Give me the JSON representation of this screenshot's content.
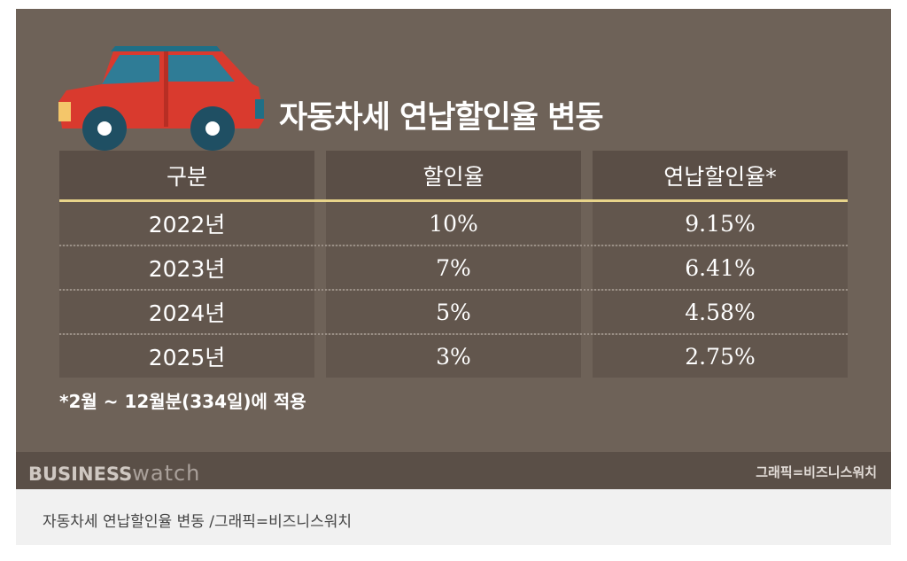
{
  "header": {
    "title": "자동차세 연납할인율 변동"
  },
  "table": {
    "columns": [
      "구분",
      "할인율",
      "연납할인율*"
    ],
    "rows": [
      [
        "2022년",
        "10%",
        "9.15%"
      ],
      [
        "2023년",
        "7%",
        "6.41%"
      ],
      [
        "2024년",
        "5%",
        "4.58%"
      ],
      [
        "2025년",
        "3%",
        "2.75%"
      ]
    ]
  },
  "note": "*2월 ~ 12월분(334일)에 적용",
  "footer": {
    "brand_main": "BUSINESS",
    "brand_sub": "watch",
    "credit": "그래픽=비즈니스워치"
  },
  "caption": "자동차세 연납할인율 변동 /그래픽=비즈니스워치"
}
